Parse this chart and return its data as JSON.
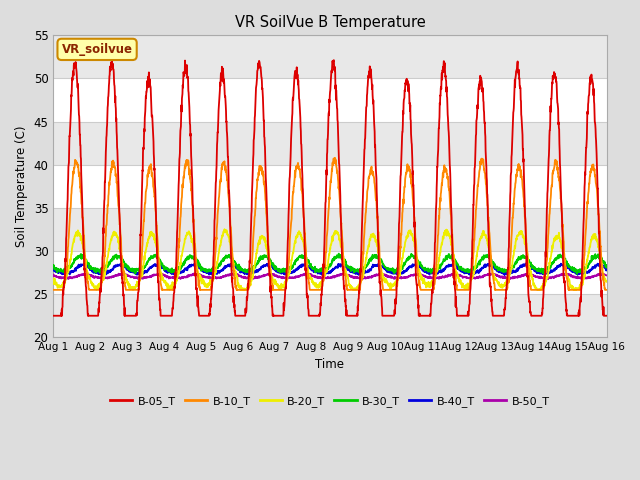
{
  "title": "VR SoilVue B Temperature",
  "ylabel": "Soil Temperature (C)",
  "xlabel": "Time",
  "ylim": [
    20,
    55
  ],
  "yticks": [
    20,
    25,
    30,
    35,
    40,
    45,
    50,
    55
  ],
  "date_labels": [
    "Aug 1",
    "Aug 2",
    "Aug 3",
    "Aug 4",
    "Aug 5",
    "Aug 6",
    "Aug 7",
    "Aug 8",
    "Aug 9",
    "Aug 10",
    "Aug 11",
    "Aug 12",
    "Aug 13",
    "Aug 14",
    "Aug 15",
    "Aug 16"
  ],
  "legend_label": "VR_soilvue",
  "series_colors": {
    "B-05_T": "#dd0000",
    "B-10_T": "#ff8800",
    "B-20_T": "#eeee00",
    "B-30_T": "#00cc00",
    "B-40_T": "#0000dd",
    "B-50_T": "#aa00aa"
  },
  "fig_bg_color": "#dddddd",
  "plot_bg_color": "#ffffff",
  "band_color": "#e8e8e8",
  "grid_line_color": "#cccccc"
}
